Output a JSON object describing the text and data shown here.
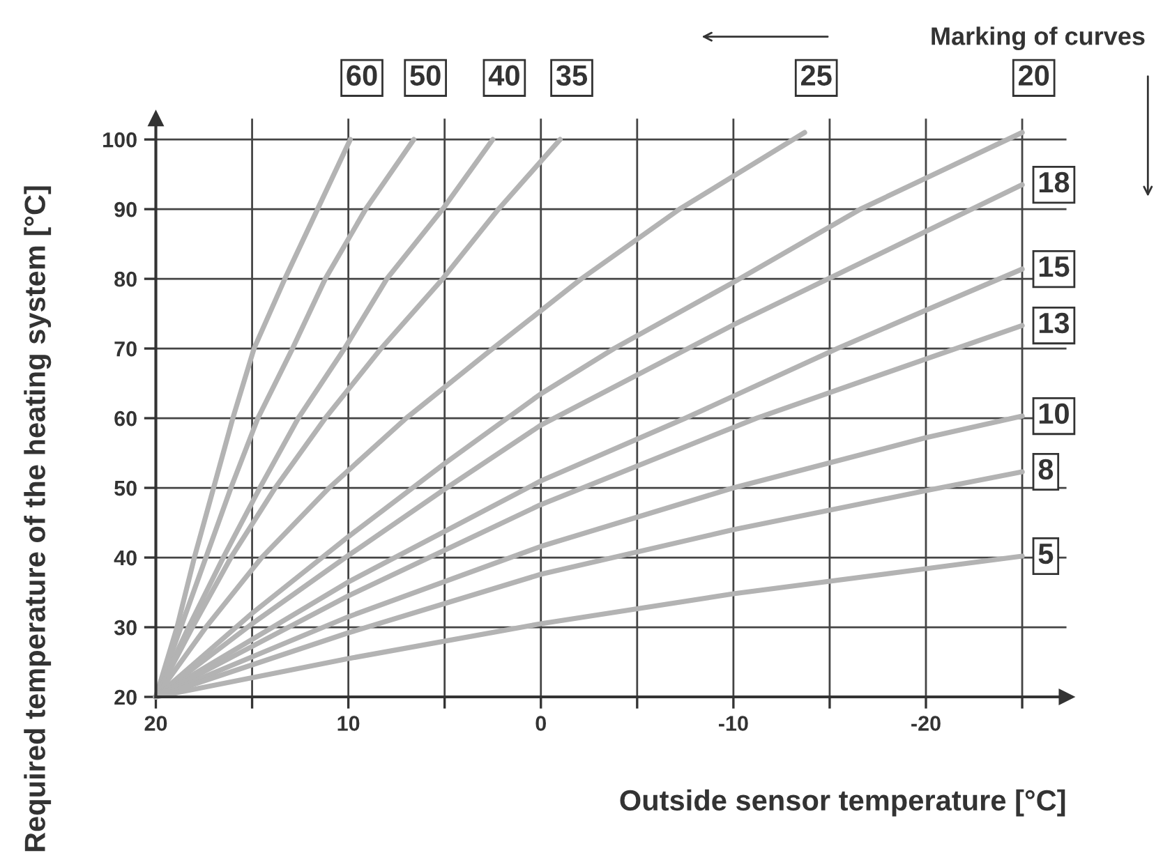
{
  "chart_data": {
    "type": "line",
    "xlabel": "Outside sensor temperature [°C]",
    "ylabel": "Required temperature of the heating system [°C]",
    "annotations": [
      "Marking of curves"
    ],
    "xlim": [
      20,
      -27.3
    ],
    "ylim": [
      20,
      103
    ],
    "xticks": [
      20,
      {
        "value": 15,
        "label": null
      },
      10,
      {
        "value": 5,
        "label": null
      },
      0,
      {
        "value": -5,
        "label": null
      },
      -10,
      {
        "value": -15,
        "label": null
      },
      -20,
      {
        "value": -25,
        "label": null
      }
    ],
    "yticks": [
      20,
      30,
      40,
      50,
      60,
      70,
      80,
      90,
      100
    ],
    "grid": true,
    "legend": false,
    "marker": "none",
    "line_style": "solid",
    "series": [
      {
        "name": "60",
        "color": "#b3b3b3",
        "x": [
          20,
          18.9,
          18.0,
          17.0,
          16.0,
          14.9,
          13.3,
          11.6,
          9.9
        ],
        "values": [
          20,
          30,
          40,
          50,
          60,
          70,
          80,
          90,
          100
        ]
      },
      {
        "name": "50",
        "color": "#b3b3b3",
        "x": [
          20,
          18.7,
          17.4,
          16.1,
          14.7,
          12.9,
          11.2,
          9.1,
          6.6
        ],
        "values": [
          20,
          30,
          40,
          50,
          60,
          70,
          80,
          90,
          100
        ]
      },
      {
        "name": "40",
        "color": "#b3b3b3",
        "x": [
          20,
          18.3,
          16.5,
          14.6,
          12.6,
          10.2,
          8.0,
          5.1,
          2.5
        ],
        "values": [
          20,
          30,
          40,
          50,
          60,
          70,
          80,
          90,
          100
        ]
      },
      {
        "name": "35",
        "color": "#b3b3b3",
        "x": [
          20,
          18.1,
          16.1,
          13.8,
          11.2,
          8.3,
          5.1,
          2.2,
          -1.0
        ],
        "values": [
          20,
          30,
          40,
          50,
          60,
          70,
          80,
          90,
          100
        ]
      },
      {
        "name": "25",
        "color": "#b3b3b3",
        "x": [
          20,
          17.4,
          14.5,
          11.0,
          7.0,
          2.5,
          -2.1,
          -7.2,
          -13.7
        ],
        "values": [
          20,
          30,
          40,
          50,
          60,
          70,
          80,
          90,
          101
        ]
      },
      {
        "name": "20",
        "color": "#b3b3b3",
        "x": [
          20,
          15,
          10,
          5,
          0,
          -3.8,
          -10,
          -16.6,
          -25
        ],
        "values": [
          20,
          32,
          43,
          53.5,
          63.5,
          70,
          79.5,
          90,
          101
        ]
      },
      {
        "name": "18",
        "color": "#b3b3b3",
        "x": [
          20,
          15,
          10,
          5,
          0,
          -10,
          -20,
          -25
        ],
        "values": [
          20,
          30.5,
          40.3,
          49.8,
          59,
          73.4,
          86.8,
          93.5
        ]
      },
      {
        "name": "15",
        "color": "#b3b3b3",
        "x": [
          20,
          10,
          0,
          -7.5,
          -15.4,
          -20,
          -25
        ],
        "values": [
          20,
          36.5,
          51,
          60,
          70,
          75.5,
          81.4
        ]
      },
      {
        "name": "13",
        "color": "#b3b3b3",
        "x": [
          20,
          10,
          0,
          -11.2,
          -20,
          -25
        ],
        "values": [
          20,
          34.5,
          47.6,
          60,
          68.5,
          73.3
        ]
      },
      {
        "name": "10",
        "color": "#b3b3b3",
        "x": [
          20,
          10,
          0,
          -10,
          -20,
          -25
        ],
        "values": [
          20,
          31.5,
          41.6,
          50,
          57.2,
          60.3
        ]
      },
      {
        "name": "8",
        "color": "#b3b3b3",
        "x": [
          20,
          10,
          0,
          -10,
          -20,
          -25
        ],
        "values": [
          20,
          29.2,
          37.6,
          44,
          49.6,
          52.3
        ]
      },
      {
        "name": "5",
        "color": "#b3b3b3",
        "x": [
          20,
          10,
          0,
          -10,
          -20,
          -25
        ],
        "values": [
          20,
          25.5,
          30.5,
          34.8,
          38.4,
          40.2
        ]
      }
    ]
  }
}
